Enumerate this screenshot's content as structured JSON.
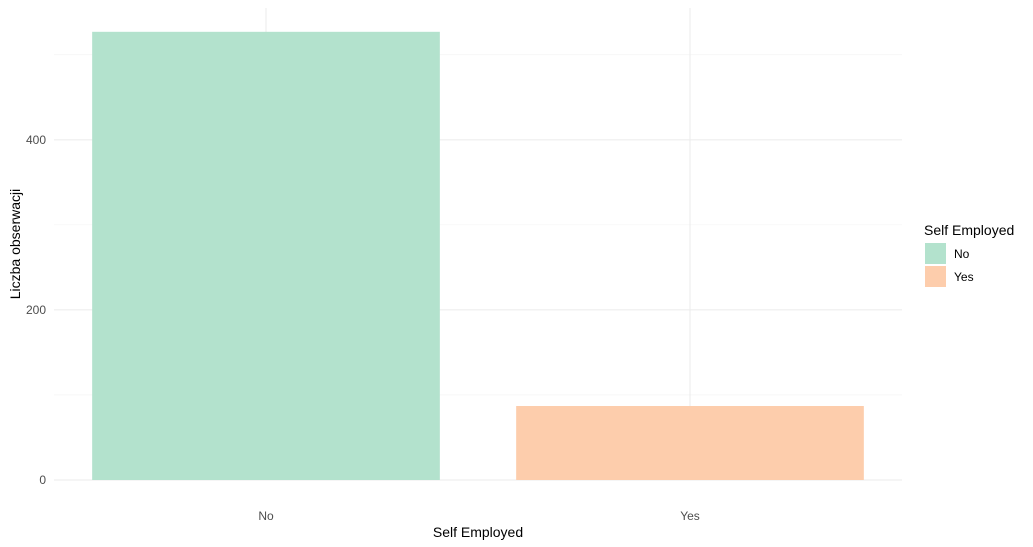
{
  "chart_data": {
    "type": "bar",
    "title": "",
    "xlabel": "Self Employed",
    "ylabel": "Liczba obserwacji",
    "categories": [
      "No",
      "Yes"
    ],
    "values": [
      527,
      87
    ],
    "ylim": [
      0,
      555
    ],
    "yticks": [
      0,
      200,
      400
    ],
    "yminor": [
      100,
      300,
      500
    ],
    "grid": true,
    "legend": {
      "title": "Self Employed",
      "position": "right",
      "items": [
        {
          "label": "No",
          "color": "#b3e2cd"
        },
        {
          "label": "Yes",
          "color": "#fdcdac"
        }
      ]
    },
    "colors": [
      "#b3e2cd",
      "#fdcdac"
    ]
  }
}
